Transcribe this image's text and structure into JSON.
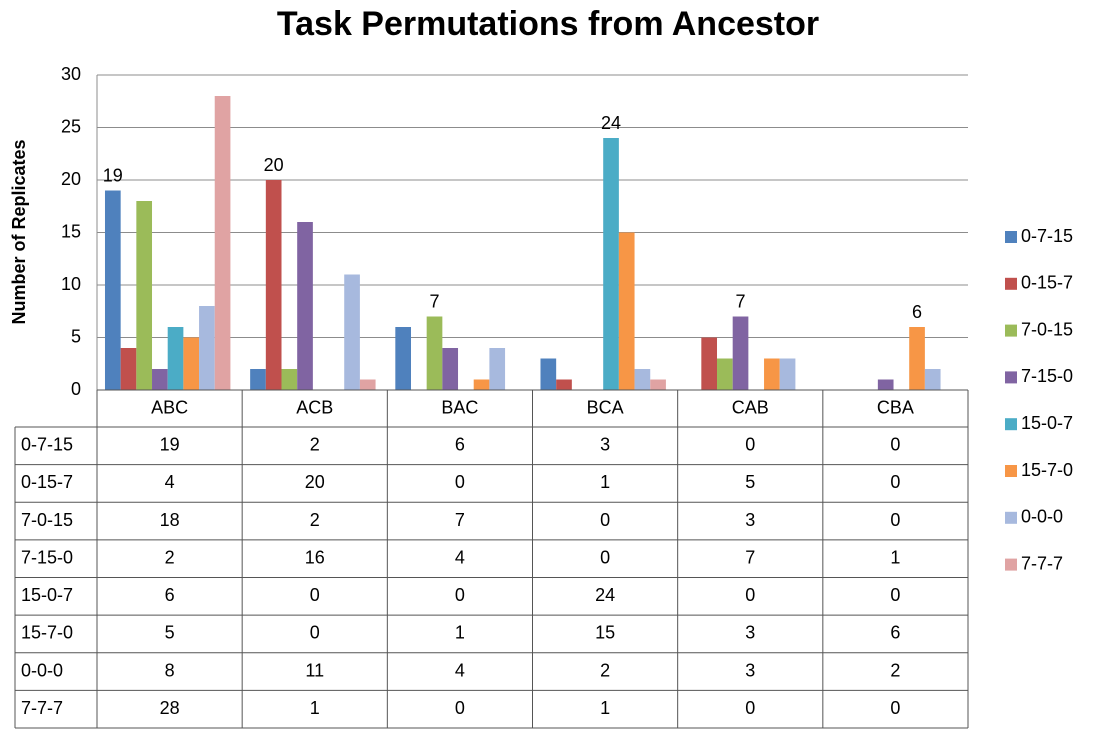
{
  "chart_data": {
    "type": "bar",
    "title": "Task Permutations from Ancestor",
    "y_label": "Number of Replicates",
    "categories": [
      "ABC",
      "ACB",
      "BAC",
      "BCA",
      "CAB",
      "CBA"
    ],
    "series": [
      {
        "name": "0-7-15",
        "color": "#4f81bd",
        "values": [
          19,
          2,
          6,
          3,
          0,
          0
        ],
        "value_labels": [
          "19",
          null,
          null,
          null,
          null,
          null
        ]
      },
      {
        "name": "0-15-7",
        "color": "#c0504d",
        "values": [
          4,
          20,
          0,
          1,
          5,
          0
        ],
        "value_labels": [
          null,
          "20",
          null,
          null,
          null,
          null
        ]
      },
      {
        "name": "7-0-15",
        "color": "#9bbb59",
        "values": [
          18,
          2,
          7,
          0,
          3,
          0
        ],
        "value_labels": [
          null,
          null,
          "7",
          null,
          null,
          null
        ]
      },
      {
        "name": "7-15-0",
        "color": "#8064a2",
        "values": [
          2,
          16,
          4,
          0,
          7,
          1
        ],
        "value_labels": [
          null,
          null,
          null,
          null,
          "7",
          null
        ]
      },
      {
        "name": "15-0-7",
        "color": "#4bacc6",
        "values": [
          6,
          0,
          0,
          24,
          0,
          0
        ],
        "value_labels": [
          null,
          null,
          null,
          "24",
          null,
          null
        ]
      },
      {
        "name": "15-7-0",
        "color": "#f79646",
        "values": [
          5,
          0,
          1,
          15,
          3,
          6
        ],
        "value_labels": [
          null,
          null,
          null,
          null,
          null,
          "6"
        ]
      },
      {
        "name": "0-0-0",
        "color": "#a7b9de",
        "values": [
          8,
          11,
          4,
          2,
          3,
          2
        ]
      },
      {
        "name": "7-7-7",
        "color": "#e0a3a3",
        "values": [
          28,
          1,
          0,
          1,
          0,
          0
        ]
      }
    ],
    "ylim": [
      0,
      30
    ],
    "yticks": [
      0,
      5,
      10,
      15,
      20,
      25,
      30
    ],
    "grid": true,
    "legend": "right",
    "data_table": true
  }
}
